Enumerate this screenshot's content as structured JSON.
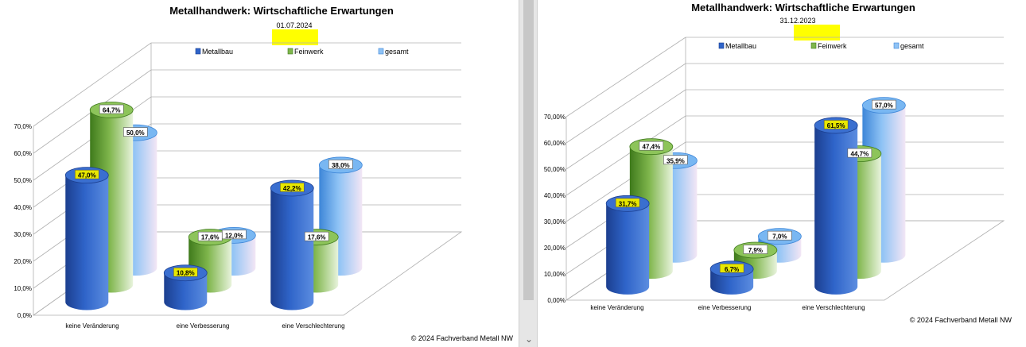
{
  "colors": {
    "metallbau": "#2a5bbf",
    "feinwerk": "#6fa63c",
    "gesamt": "#6aaaf0",
    "highlight": "#ffff00",
    "grid": "#aaaaaa"
  },
  "chart_data": [
    {
      "type": "bar",
      "title": "Metallhandwerk: Wirtschaftliche Erwartungen",
      "subtitle": "01.07.2024",
      "categories": [
        "keine Veränderung",
        "eine Verbesserung",
        "eine Verschlechterung"
      ],
      "series": [
        {
          "name": "Metallbau",
          "values": [
            47.0,
            10.8,
            42.2
          ],
          "labels": [
            "47,0%",
            "10,8%",
            "42,2%"
          ]
        },
        {
          "name": "Feinwerk",
          "values": [
            64.7,
            17.6,
            17.6
          ],
          "labels": [
            "64,7%",
            "17,6%",
            "17,6%"
          ]
        },
        {
          "name": "gesamt",
          "values": [
            50.0,
            12.0,
            38.0
          ],
          "labels": [
            "50,0%",
            "12,0%",
            "38,0%"
          ]
        }
      ],
      "yticks": [
        "0,0%",
        "10,0%",
        "20,0%",
        "30,0%",
        "40,0%",
        "50,0%",
        "60,0%",
        "70,0%"
      ],
      "ylim": [
        0,
        70
      ],
      "grid": true,
      "legend": "top",
      "style": "3d cylinder",
      "footer": "© 2024 Fachverband Metall NW"
    },
    {
      "type": "bar",
      "title": "Metallhandwerk: Wirtschaftliche Erwartungen",
      "subtitle": "31.12.2023",
      "categories": [
        "keine Veränderung",
        "eine Verbesserung",
        "eine Verschlechterung"
      ],
      "series": [
        {
          "name": "Metallbau",
          "values": [
            31.7,
            6.7,
            61.5
          ],
          "labels": [
            "31,7%",
            "6,7%",
            "61,5%"
          ]
        },
        {
          "name": "Feinwerk",
          "values": [
            47.4,
            7.9,
            44.7
          ],
          "labels": [
            "47,4%",
            "7,9%",
            "44,7%"
          ]
        },
        {
          "name": "gesamt",
          "values": [
            35.9,
            7.0,
            57.0
          ],
          "labels": [
            "35,9%",
            "7,0%",
            "57,0%"
          ]
        }
      ],
      "yticks": [
        "0,00%",
        "10,00%",
        "20,00%",
        "30,00%",
        "40,00%",
        "50,00%",
        "60,00%",
        "70,00%"
      ],
      "ylim": [
        0,
        70
      ],
      "grid": true,
      "legend": "top",
      "style": "3d cylinder",
      "footer": "© 2024 Fachverband Metall NW"
    }
  ]
}
